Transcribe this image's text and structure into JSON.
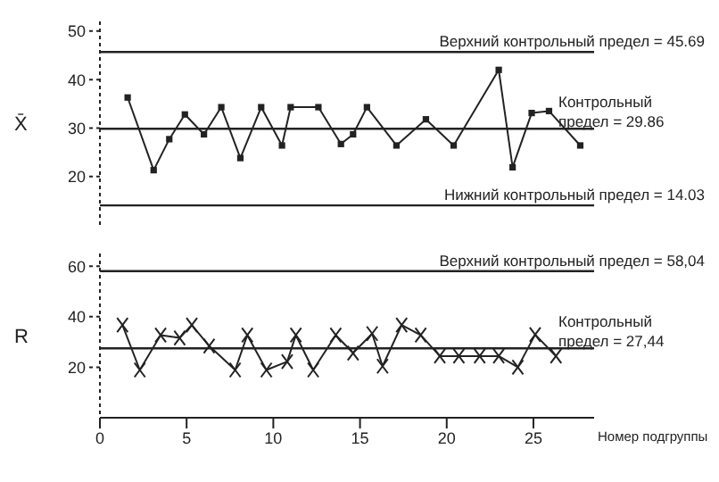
{
  "chart_data": [
    {
      "type": "line",
      "ylabel": "X̄",
      "xlim": [
        0,
        28.5
      ],
      "ylim": [
        10,
        52
      ],
      "yticks": [
        20,
        30,
        40,
        50
      ],
      "tick_labels": "y",
      "marker": "square",
      "line_style": "solid",
      "series": [
        {
          "color": "#222222",
          "x": [
            1.6,
            3.1,
            4.0,
            4.9,
            6.0,
            7.0,
            8.1,
            9.3,
            10.5,
            11.0,
            12.6,
            13.9,
            14.6,
            15.4,
            17.1,
            18.8,
            20.4,
            23.0,
            23.8,
            24.9,
            25.9,
            27.7
          ],
          "values": [
            36.3,
            21.3,
            27.7,
            32.8,
            28.7,
            34.3,
            23.8,
            34.3,
            26.4,
            34.3,
            34.3,
            26.7,
            28.7,
            34.3,
            26.4,
            31.8,
            26.4,
            42.0,
            21.9,
            33.1,
            33.5,
            26.4
          ]
        }
      ],
      "ref_lines": [
        {
          "axis": "y",
          "value": 45.69,
          "label": "Верхний контрольный предел = 45.69",
          "color": "#222222"
        },
        {
          "axis": "y",
          "value": 29.86,
          "label": "Контрольный предел = 29.86",
          "color": "#222222"
        },
        {
          "axis": "y",
          "value": 14.03,
          "label": "Нижний контрольный предел = 14.03",
          "color": "#222222"
        }
      ]
    },
    {
      "type": "line",
      "ylabel": "R",
      "xlabel": "Номер подгруппы",
      "xlim": [
        0,
        28.5
      ],
      "ylim": [
        0,
        65
      ],
      "xticks": [
        0,
        5,
        10,
        15,
        20,
        25
      ],
      "yticks": [
        20,
        40,
        60
      ],
      "marker": "cross",
      "line_style": "solid",
      "series": [
        {
          "color": "#222222",
          "x": [
            1.3,
            2.3,
            3.5,
            4.6,
            5.3,
            6.3,
            7.8,
            8.5,
            9.6,
            10.8,
            11.3,
            12.3,
            13.6,
            14.6,
            15.7,
            16.3,
            17.4,
            18.5,
            19.6,
            20.7,
            21.9,
            23.0,
            24.1,
            25.1,
            26.3
          ],
          "values": [
            36.7,
            18.9,
            32.7,
            31.6,
            36.7,
            28.4,
            18.9,
            32.7,
            18.9,
            22.2,
            32.7,
            18.9,
            32.7,
            25.6,
            33.3,
            20.4,
            36.7,
            32.7,
            24.4,
            24.4,
            24.4,
            24.4,
            20.0,
            32.9,
            24.4
          ]
        }
      ],
      "ref_lines": [
        {
          "axis": "y",
          "value": 58.04,
          "label": "Верхний контрольный предел = 58,04",
          "color": "#222222"
        },
        {
          "axis": "y",
          "value": 27.44,
          "label": "Контрольный предел = 27,44",
          "color": "#222222"
        }
      ]
    }
  ]
}
